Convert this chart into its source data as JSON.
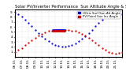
{
  "title": "Solar PV/Inverter Performance  Sun Altitude Angle & Sun Incidence Angle on PV Panels",
  "legend_blue": "HOriz Surf Sun Alt Angle",
  "legend_red": "PV Panel Sun Inc Angle",
  "blue_x": [
    0,
    1,
    2,
    3,
    4,
    5,
    6,
    7,
    8,
    9,
    10,
    11,
    12,
    13,
    14,
    15,
    16,
    17,
    18,
    19,
    20,
    21,
    22,
    23,
    24,
    25,
    26,
    27,
    28,
    29,
    30,
    31,
    32
  ],
  "blue_y": [
    88,
    85,
    80,
    74,
    68,
    61,
    54,
    47,
    41,
    36,
    31,
    27,
    24,
    22,
    21,
    21,
    22,
    24,
    27,
    31,
    36,
    41,
    47,
    54,
    61,
    68,
    74,
    80,
    85,
    88,
    89,
    88,
    86
  ],
  "red_x": [
    0,
    1,
    2,
    3,
    4,
    5,
    6,
    7,
    8,
    9,
    10,
    11,
    12,
    13,
    14,
    15,
    16,
    17,
    18,
    19,
    20,
    21,
    22,
    23,
    24,
    25,
    26,
    27,
    28,
    29,
    30,
    31,
    32
  ],
  "red_y": [
    10,
    14,
    18,
    23,
    28,
    33,
    38,
    42,
    46,
    49,
    52,
    53,
    54,
    54,
    54,
    54,
    54,
    53,
    52,
    49,
    46,
    42,
    38,
    33,
    28,
    23,
    18,
    14,
    10,
    8,
    7,
    8,
    10
  ],
  "hline_blue_y": 54,
  "hline_red_y": 52,
  "hline_x_start": 11,
  "hline_x_end": 15,
  "ylim": [
    0,
    95
  ],
  "ytick_values": [
    10,
    20,
    30,
    40,
    50,
    60,
    70,
    80,
    90
  ],
  "ytick_labels": [
    "1.",
    "2.",
    "3.",
    "4.",
    "5.",
    "6.",
    "7.",
    "8.",
    "9."
  ],
  "xtick_positions": [
    0,
    2,
    4,
    6,
    8,
    10,
    12,
    14,
    16,
    18,
    20,
    22,
    24,
    26,
    28,
    30,
    32
  ],
  "xtick_labels": [
    "06:15",
    "07:15",
    "08:15",
    "09:15",
    "10:15",
    "11:15",
    "12:15",
    "13:15",
    "14:15",
    "15:15",
    "16:15",
    "17:15",
    "18:15",
    "19:15",
    "20:15",
    "21:15",
    ""
  ],
  "bg_color": "#ffffff",
  "grid_color": "#c0c0c0",
  "blue_color": "#0000cc",
  "red_color": "#cc0000",
  "title_fontsize": 3.8,
  "tick_fontsize": 3.0,
  "legend_fontsize": 2.8
}
